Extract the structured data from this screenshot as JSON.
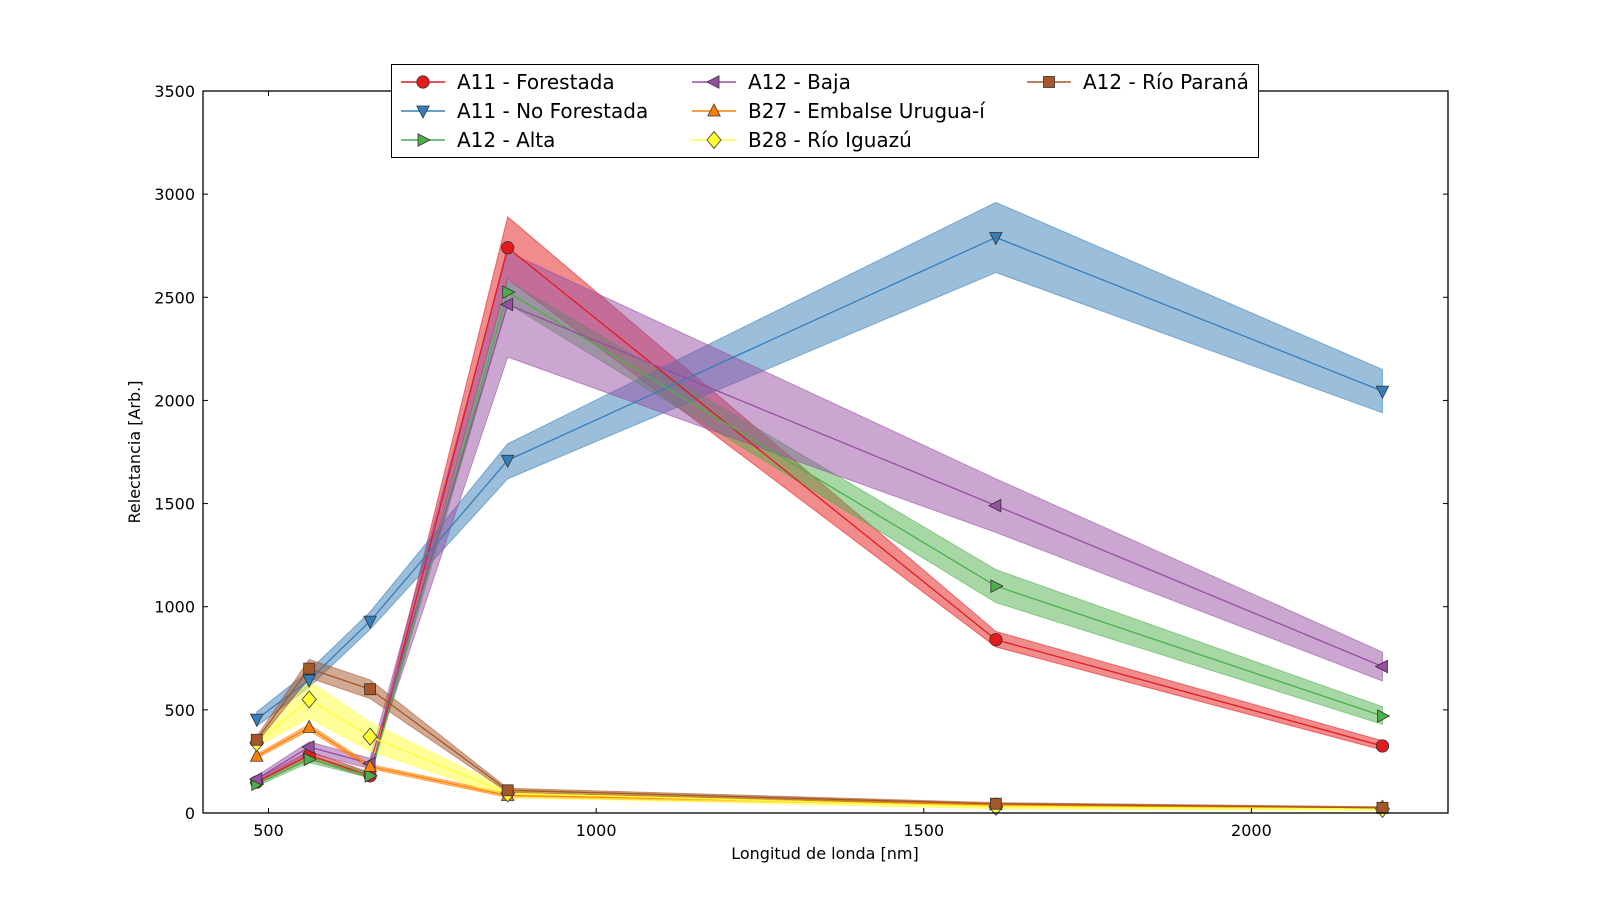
{
  "chart_data": {
    "type": "line",
    "title": "",
    "xlabel": "Longitud de londa [nm]",
    "ylabel": "Relectancia [Arb.]",
    "xlim": [
      400,
      2300
    ],
    "ylim": [
      0,
      3500
    ],
    "xticks": [
      500,
      1000,
      1500,
      2000
    ],
    "yticks": [
      0,
      500,
      1000,
      1500,
      2000,
      2500,
      3000,
      3500
    ],
    "grid": false,
    "legend_position": "top-center",
    "x": [
      482,
      562,
      655,
      865,
      1610,
      2200
    ],
    "series": [
      {
        "name": "A11 - Forestada",
        "color": "#e41a1c",
        "marker": "circle",
        "values": [
          150,
          280,
          180,
          2740,
          840,
          325
        ],
        "lower": [
          140,
          260,
          170,
          2590,
          805,
          305
        ],
        "upper": [
          165,
          300,
          195,
          2890,
          880,
          350
        ]
      },
      {
        "name": "A11 - No Forestada",
        "color": "#377eb8",
        "marker": "triangle-down",
        "values": [
          455,
          645,
          930,
          1710,
          2790,
          2045
        ],
        "lower": [
          420,
          610,
          890,
          1620,
          2620,
          1940
        ],
        "upper": [
          490,
          690,
          975,
          1790,
          2960,
          2150
        ]
      },
      {
        "name": "A12 - Alta",
        "color": "#4daf4a",
        "marker": "triangle-right",
        "values": [
          140,
          260,
          180,
          2525,
          1100,
          470
        ],
        "lower": [
          130,
          245,
          170,
          2470,
          1020,
          430
        ],
        "upper": [
          155,
          280,
          195,
          2580,
          1180,
          515
        ]
      },
      {
        "name": "A12 - Baja",
        "color": "#984ea3",
        "marker": "triangle-left",
        "values": [
          165,
          320,
          240,
          2465,
          1490,
          710
        ],
        "lower": [
          150,
          290,
          215,
          2210,
          1360,
          640
        ],
        "upper": [
          180,
          345,
          265,
          2720,
          1620,
          780
        ]
      },
      {
        "name": "B27 - Embalse Urugua-í",
        "color": "#ff7f00",
        "marker": "triangle-up",
        "values": [
          275,
          415,
          225,
          85,
          40,
          25
        ],
        "lower": [
          265,
          400,
          215,
          75,
          35,
          20
        ],
        "upper": [
          285,
          430,
          235,
          95,
          45,
          30
        ]
      },
      {
        "name": "B28 - Río Iguazú",
        "color": "#ffff33",
        "marker": "diamond",
        "values": [
          340,
          550,
          370,
          95,
          30,
          20
        ],
        "lower": [
          320,
          460,
          300,
          75,
          20,
          12
        ],
        "upper": [
          360,
          640,
          440,
          115,
          40,
          28
        ]
      },
      {
        "name": "A12 - Río Paraná",
        "color": "#a65628",
        "marker": "square",
        "values": [
          355,
          700,
          600,
          110,
          45,
          25
        ],
        "lower": [
          340,
          655,
          555,
          100,
          40,
          20
        ],
        "upper": [
          370,
          745,
          645,
          120,
          50,
          30
        ]
      }
    ]
  }
}
